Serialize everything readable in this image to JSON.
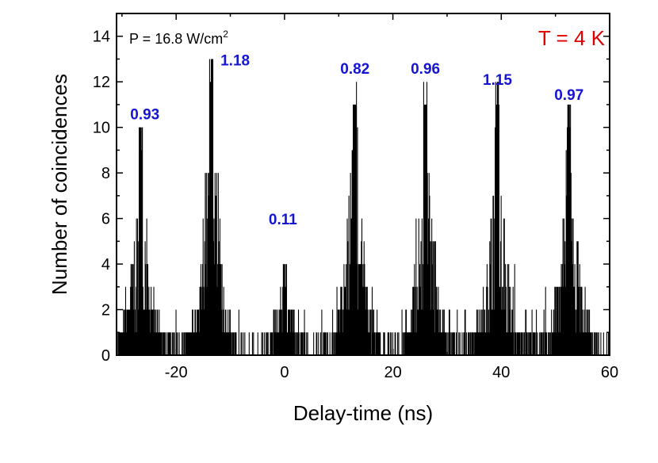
{
  "chart_data": {
    "type": "bar",
    "title": "",
    "xlabel": "Delay-time (ns)",
    "ylabel": "Number of coincidences",
    "xlim": [
      -31,
      60
    ],
    "ylim": [
      0,
      15
    ],
    "x_ticks": [
      -20,
      0,
      20,
      40,
      60
    ],
    "y_ticks": [
      0,
      2,
      4,
      6,
      8,
      10,
      12,
      14
    ],
    "grid": false,
    "peaks": [
      {
        "center": -26.5,
        "max": 10,
        "label": "0.93"
      },
      {
        "center": -13.5,
        "max": 13,
        "label": "1.18"
      },
      {
        "center": 0,
        "max": 4,
        "label": "0.11"
      },
      {
        "center": 13,
        "max": 12,
        "label": "0.82"
      },
      {
        "center": 26,
        "max": 12,
        "label": "0.96"
      },
      {
        "center": 39.3,
        "max": 12,
        "label": "1.15"
      },
      {
        "center": 52.5,
        "max": 11,
        "label": "0.97"
      }
    ],
    "annotations": {
      "power": {
        "prefix": "P = 16.8 W/cm",
        "superscript": "2"
      },
      "temperature": "T = 4 K"
    },
    "colors": {
      "bars": "#000000",
      "peak_labels": "#1414d2",
      "temperature": "#e00000"
    }
  }
}
